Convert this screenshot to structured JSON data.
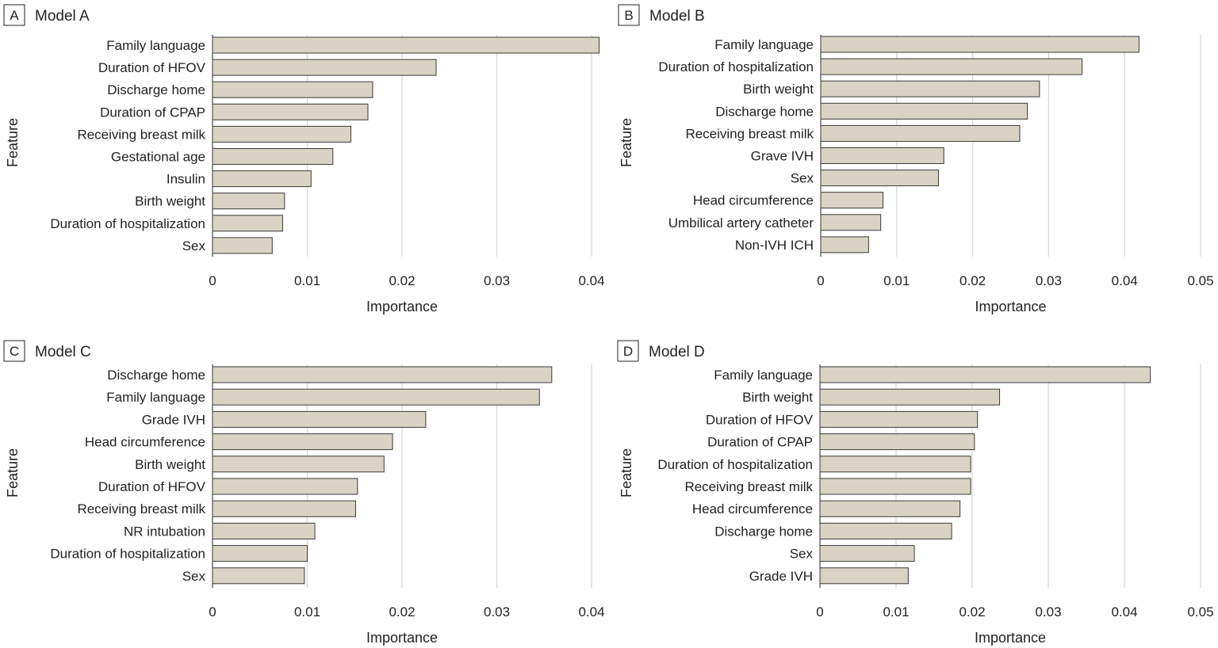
{
  "chart_data": [
    {
      "type": "bar",
      "orientation": "horizontal",
      "panel_letter": "A",
      "title": "Model A",
      "xlabel": "Importance",
      "ylabel": "Feature",
      "xlim": [
        0,
        0.04
      ],
      "xticks": [
        0,
        0.01,
        0.02,
        0.03,
        0.04
      ],
      "xtick_labels": [
        "0",
        "0.01",
        "0.02",
        "0.03",
        "0.04"
      ],
      "grid": "vertical",
      "categories": [
        "Family language",
        "Duration of HFOV",
        "Discharge home",
        "Duration of CPAP",
        "Receiving breast milk",
        "Gestational age",
        "Insulin",
        "Birth weight",
        "Duration of hospitalization",
        "Sex"
      ],
      "values": [
        0.0408,
        0.0236,
        0.0169,
        0.0164,
        0.0146,
        0.0127,
        0.0104,
        0.0076,
        0.0074,
        0.0063
      ]
    },
    {
      "type": "bar",
      "orientation": "horizontal",
      "panel_letter": "B",
      "title": "Model B",
      "xlabel": "Importance",
      "ylabel": "Feature",
      "xlim": [
        0,
        0.05
      ],
      "xticks": [
        0,
        0.01,
        0.02,
        0.03,
        0.04,
        0.05
      ],
      "xtick_labels": [
        "0",
        "0.01",
        "0.02",
        "0.03",
        "0.04",
        "0.05"
      ],
      "grid": "vertical",
      "categories": [
        "Family language",
        "Duration of hospitalization",
        "Birth weight",
        "Discharge home",
        "Receiving breast milk",
        "Grave IVH",
        "Sex",
        "Head circumference",
        "Umbilical artery catheter",
        "Non-IVH ICH"
      ],
      "values": [
        0.0419,
        0.0344,
        0.0288,
        0.0272,
        0.0262,
        0.0162,
        0.0155,
        0.0082,
        0.0079,
        0.0063
      ]
    },
    {
      "type": "bar",
      "orientation": "horizontal",
      "panel_letter": "C",
      "title": "Model C",
      "xlabel": "Importance",
      "ylabel": "Feature",
      "xlim": [
        0,
        0.04
      ],
      "xticks": [
        0,
        0.01,
        0.02,
        0.03,
        0.04
      ],
      "xtick_labels": [
        "0",
        "0.01",
        "0.02",
        "0.03",
        "0.04"
      ],
      "grid": "vertical",
      "categories": [
        "Discharge home",
        "Family language",
        "Grade IVH",
        "Head circumference",
        "Birth weight",
        "Duration of HFOV",
        "Receiving breast milk",
        "NR intubation",
        "Duration of hospitalization",
        "Sex"
      ],
      "values": [
        0.0358,
        0.0345,
        0.0225,
        0.019,
        0.0181,
        0.0153,
        0.0151,
        0.0108,
        0.01,
        0.0097
      ]
    },
    {
      "type": "bar",
      "orientation": "horizontal",
      "panel_letter": "D",
      "title": "Model D",
      "xlabel": "Importance",
      "ylabel": "Feature",
      "xlim": [
        0,
        0.05
      ],
      "xticks": [
        0,
        0.01,
        0.02,
        0.03,
        0.04,
        0.05
      ],
      "xtick_labels": [
        "0",
        "0.01",
        "0.02",
        "0.03",
        "0.04",
        "0.05"
      ],
      "grid": "vertical",
      "categories": [
        "Family language",
        "Birth weight",
        "Duration of HFOV",
        "Duration of CPAP",
        "Duration of hospitalization",
        "Receiving breast milk",
        "Head circumference",
        "Discharge home",
        "Sex",
        "Grade IVH"
      ],
      "values": [
        0.0434,
        0.0236,
        0.0207,
        0.0203,
        0.0198,
        0.0198,
        0.0184,
        0.0173,
        0.0124,
        0.0116
      ]
    }
  ]
}
